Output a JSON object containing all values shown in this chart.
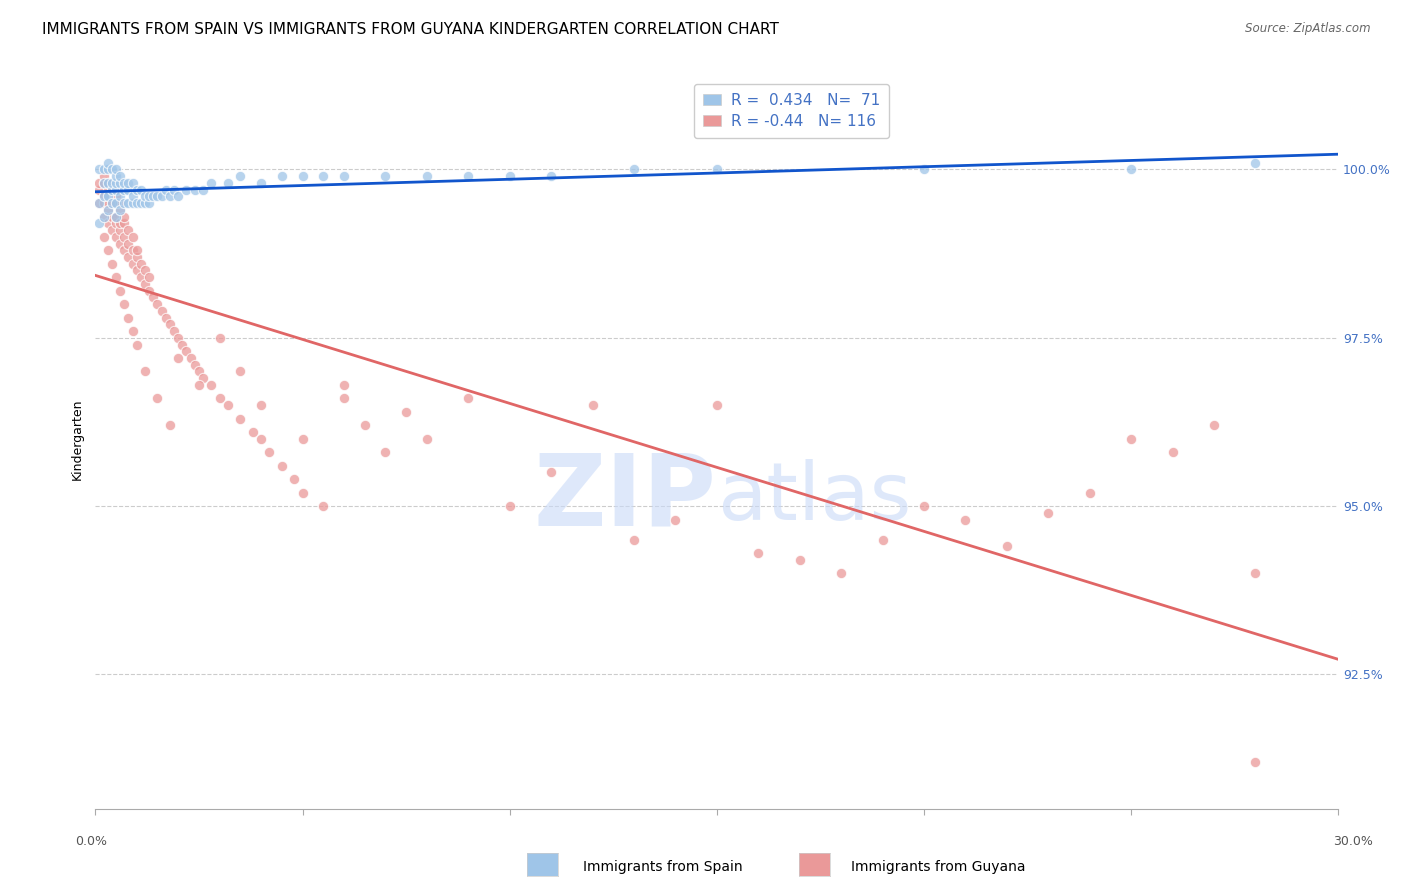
{
  "title": "IMMIGRANTS FROM SPAIN VS IMMIGRANTS FROM GUYANA KINDERGARTEN CORRELATION CHART",
  "source": "Source: ZipAtlas.com",
  "ylabel": "Kindergarten",
  "xmin": 0.0,
  "xmax": 0.3,
  "ymin": 90.5,
  "ymax": 101.5,
  "spain_R": 0.434,
  "spain_N": 71,
  "guyana_R": -0.44,
  "guyana_N": 116,
  "spain_color": "#9fc5e8",
  "guyana_color": "#ea9999",
  "spain_line_color": "#1155cc",
  "guyana_line_color": "#e06666",
  "background_color": "#ffffff",
  "watermark_color": "#c9daf8",
  "title_fontsize": 11,
  "axis_label_fontsize": 9,
  "tick_fontsize": 9,
  "ytick_vals": [
    92.5,
    95.0,
    97.5,
    100.0
  ],
  "spain_x": [
    0.001,
    0.001,
    0.001,
    0.002,
    0.002,
    0.002,
    0.002,
    0.003,
    0.003,
    0.003,
    0.003,
    0.003,
    0.004,
    0.004,
    0.004,
    0.004,
    0.005,
    0.005,
    0.005,
    0.005,
    0.005,
    0.005,
    0.006,
    0.006,
    0.006,
    0.006,
    0.007,
    0.007,
    0.007,
    0.008,
    0.008,
    0.008,
    0.009,
    0.009,
    0.009,
    0.01,
    0.01,
    0.011,
    0.011,
    0.012,
    0.012,
    0.013,
    0.013,
    0.014,
    0.015,
    0.016,
    0.017,
    0.018,
    0.019,
    0.02,
    0.022,
    0.024,
    0.026,
    0.028,
    0.032,
    0.035,
    0.04,
    0.045,
    0.05,
    0.055,
    0.06,
    0.07,
    0.08,
    0.09,
    0.1,
    0.11,
    0.13,
    0.15,
    0.2,
    0.25,
    0.28
  ],
  "spain_y": [
    99.2,
    99.5,
    100.0,
    99.3,
    99.6,
    99.8,
    100.0,
    99.4,
    99.6,
    99.8,
    100.0,
    100.1,
    99.5,
    99.7,
    99.8,
    100.0,
    99.3,
    99.5,
    99.7,
    99.8,
    99.9,
    100.0,
    99.4,
    99.6,
    99.8,
    99.9,
    99.5,
    99.7,
    99.8,
    99.5,
    99.7,
    99.8,
    99.5,
    99.6,
    99.8,
    99.5,
    99.7,
    99.5,
    99.7,
    99.5,
    99.6,
    99.5,
    99.6,
    99.6,
    99.6,
    99.6,
    99.7,
    99.6,
    99.7,
    99.6,
    99.7,
    99.7,
    99.7,
    99.8,
    99.8,
    99.9,
    99.8,
    99.9,
    99.9,
    99.9,
    99.9,
    99.9,
    99.9,
    99.9,
    99.9,
    99.9,
    100.0,
    100.0,
    100.0,
    100.0,
    100.1
  ],
  "guyana_x": [
    0.001,
    0.001,
    0.001,
    0.002,
    0.002,
    0.002,
    0.002,
    0.002,
    0.003,
    0.003,
    0.003,
    0.003,
    0.003,
    0.004,
    0.004,
    0.004,
    0.004,
    0.005,
    0.005,
    0.005,
    0.005,
    0.005,
    0.005,
    0.006,
    0.006,
    0.006,
    0.006,
    0.006,
    0.007,
    0.007,
    0.007,
    0.007,
    0.008,
    0.008,
    0.008,
    0.009,
    0.009,
    0.009,
    0.01,
    0.01,
    0.01,
    0.011,
    0.011,
    0.012,
    0.012,
    0.013,
    0.013,
    0.014,
    0.015,
    0.016,
    0.017,
    0.018,
    0.019,
    0.02,
    0.021,
    0.022,
    0.023,
    0.024,
    0.025,
    0.026,
    0.028,
    0.03,
    0.032,
    0.035,
    0.038,
    0.04,
    0.042,
    0.045,
    0.048,
    0.05,
    0.055,
    0.06,
    0.065,
    0.07,
    0.075,
    0.08,
    0.09,
    0.1,
    0.11,
    0.12,
    0.13,
    0.14,
    0.15,
    0.16,
    0.17,
    0.18,
    0.19,
    0.2,
    0.21,
    0.22,
    0.23,
    0.24,
    0.25,
    0.26,
    0.27,
    0.28,
    0.002,
    0.003,
    0.004,
    0.005,
    0.006,
    0.007,
    0.008,
    0.009,
    0.01,
    0.012,
    0.015,
    0.018,
    0.02,
    0.025,
    0.03,
    0.035,
    0.04,
    0.05,
    0.06,
    0.28
  ],
  "guyana_y": [
    99.5,
    99.7,
    99.8,
    99.3,
    99.5,
    99.6,
    99.8,
    99.9,
    99.2,
    99.4,
    99.5,
    99.7,
    99.8,
    99.1,
    99.3,
    99.5,
    99.7,
    99.0,
    99.2,
    99.3,
    99.5,
    99.6,
    99.7,
    98.9,
    99.1,
    99.2,
    99.4,
    99.5,
    98.8,
    99.0,
    99.2,
    99.3,
    98.7,
    98.9,
    99.1,
    98.6,
    98.8,
    99.0,
    98.5,
    98.7,
    98.8,
    98.4,
    98.6,
    98.3,
    98.5,
    98.2,
    98.4,
    98.1,
    98.0,
    97.9,
    97.8,
    97.7,
    97.6,
    97.5,
    97.4,
    97.3,
    97.2,
    97.1,
    97.0,
    96.9,
    96.8,
    96.6,
    96.5,
    96.3,
    96.1,
    96.0,
    95.8,
    95.6,
    95.4,
    95.2,
    95.0,
    96.6,
    96.2,
    95.8,
    96.4,
    96.0,
    96.6,
    95.0,
    95.5,
    96.5,
    94.5,
    94.8,
    96.5,
    94.3,
    94.2,
    94.0,
    94.5,
    95.0,
    94.8,
    94.4,
    94.9,
    95.2,
    96.0,
    95.8,
    96.2,
    91.2,
    99.0,
    98.8,
    98.6,
    98.4,
    98.2,
    98.0,
    97.8,
    97.6,
    97.4,
    97.0,
    96.6,
    96.2,
    97.2,
    96.8,
    97.5,
    97.0,
    96.5,
    96.0,
    96.8,
    94.0
  ]
}
